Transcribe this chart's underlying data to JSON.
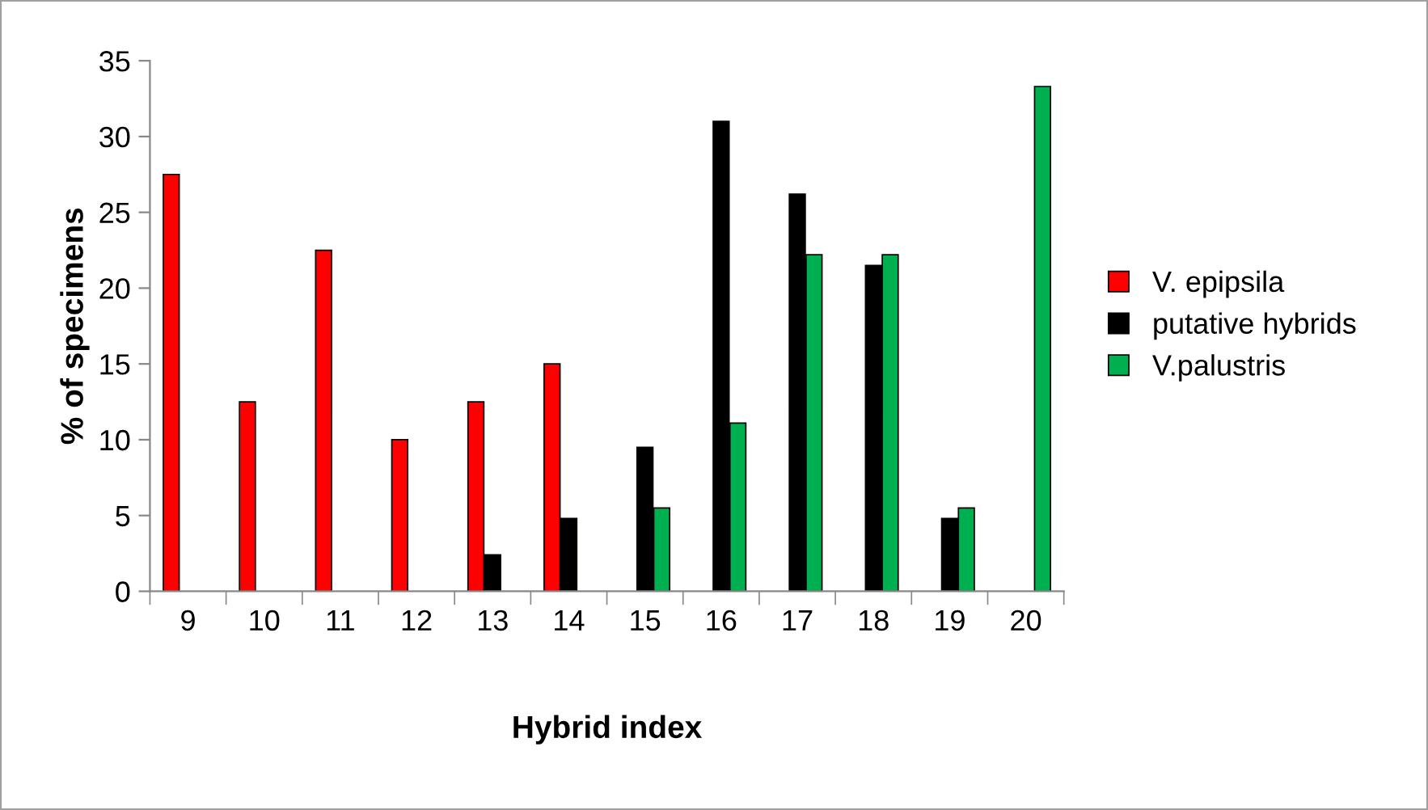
{
  "chart_data": {
    "type": "bar",
    "xlabel": "Hybrid index",
    "ylabel": "% of specimens",
    "categories": [
      "9",
      "10",
      "11",
      "12",
      "13",
      "14",
      "15",
      "16",
      "17",
      "18",
      "19",
      "20"
    ],
    "series": [
      {
        "name": "V. epipsila",
        "color": "#ff0000",
        "values": [
          27.5,
          12.5,
          22.5,
          10,
          12.5,
          15,
          null,
          null,
          null,
          null,
          null,
          null
        ]
      },
      {
        "name": "putative hybrids",
        "color": "#000000",
        "values": [
          null,
          null,
          null,
          null,
          2.4,
          4.8,
          9.5,
          31,
          26.2,
          21.5,
          4.8,
          null
        ]
      },
      {
        "name": "V.palustris",
        "color": "#00b050",
        "values": [
          null,
          null,
          null,
          null,
          null,
          null,
          5.5,
          11.1,
          22.2,
          22.2,
          5.5,
          33.3
        ]
      }
    ],
    "ylim": [
      0,
      35
    ],
    "yticks": [
      0,
      5,
      10,
      15,
      20,
      25,
      30,
      35
    ],
    "grid": false,
    "legend": "right"
  }
}
